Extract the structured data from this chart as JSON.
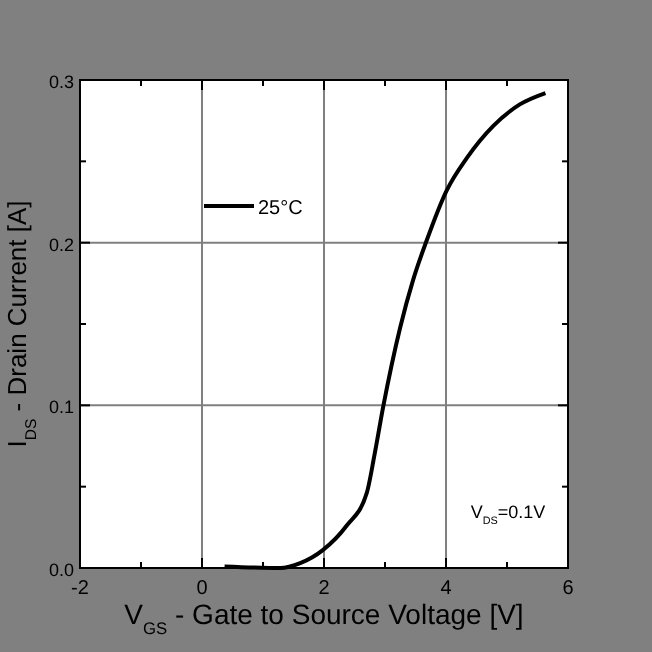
{
  "chart_data": {
    "type": "line",
    "xlabel": "V$_{GS}$ - Gate to Source Voltage [V]",
    "ylabel": "I$_{DS}$ - Drain Current [A]",
    "xlim": [
      -2,
      6
    ],
    "ylim": [
      0,
      0.3
    ],
    "xticks": [
      -2,
      {
        "value": -1,
        "label": null
      },
      0,
      {
        "value": 1,
        "label": null
      },
      2,
      {
        "value": 3,
        "label": null
      },
      4,
      {
        "value": 5,
        "label": null
      },
      6
    ],
    "yticks": [
      {
        "value": 0,
        "label": "0.0"
      },
      {
        "value": 0.05,
        "label": null
      },
      0.1,
      {
        "value": 0.15,
        "label": null
      },
      0.2,
      {
        "value": 0.25,
        "label": null
      },
      0.3
    ],
    "grid": true,
    "legend": "top left",
    "marker": "none",
    "line_style": "solid",
    "annotations": [
      "V$_{DS}$=0.1V"
    ],
    "series": [
      {
        "name": "25°C",
        "color": "#000000",
        "x": [
          0.37,
          1.28,
          1.61,
          1.98,
          2.37,
          2.7,
          2.83,
          2.97,
          3.25,
          3.46,
          3.68,
          4.01,
          4.34,
          4.78,
          5.21,
          5.63
        ],
        "values": [
          0.001,
          0,
          0.003,
          0.011,
          0.026,
          0.046,
          0.07,
          0.099,
          0.148,
          0.177,
          0.201,
          0.232,
          0.252,
          0.272,
          0.285,
          0.292
        ]
      }
    ]
  }
}
